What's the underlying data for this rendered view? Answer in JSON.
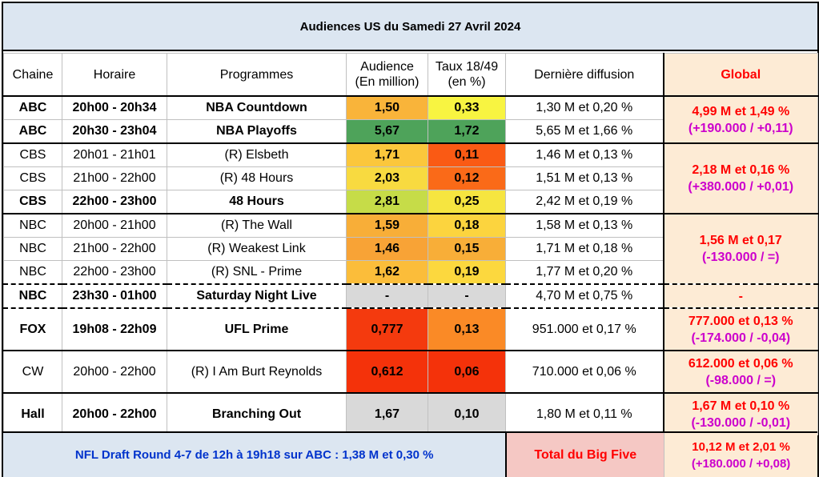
{
  "title": "Audiences US du Samedi 27 Avril 2024",
  "headers": {
    "chaine": "Chaine",
    "horaire": "Horaire",
    "programmes": "Programmes",
    "audience_l1": "Audience",
    "audience_l2": "(En million)",
    "taux_l1": "Taux 18/49",
    "taux_l2": "(en %)",
    "derniere": "Dernière diffusion",
    "global": "Global"
  },
  "rows": [
    {
      "chaine": "ABC",
      "horaire": "20h00 - 20h34",
      "programme": "NBA Countdown",
      "audience": "1,50",
      "taux": "0,33",
      "derniere": "1,30 M et 0,20 %"
    },
    {
      "chaine": "ABC",
      "horaire": "20h30 - 23h04",
      "programme": "NBA Playoffs",
      "audience": "5,67",
      "taux": "1,72",
      "derniere": "5,65 M et 1,66 %"
    },
    {
      "chaine": "CBS",
      "horaire": "20h01 - 21h01",
      "programme": "(R) Elsbeth",
      "audience": "1,71",
      "taux": "0,11",
      "derniere": "1,46 M et 0,13 %"
    },
    {
      "chaine": "CBS",
      "horaire": "21h00 - 22h00",
      "programme": "(R) 48 Hours",
      "audience": "2,03",
      "taux": "0,12",
      "derniere": "1,51 M et 0,13 %"
    },
    {
      "chaine": "CBS",
      "horaire": "22h00 - 23h00",
      "programme": "48 Hours",
      "audience": "2,81",
      "taux": "0,25",
      "derniere": "2,42 M et 0,19 %"
    },
    {
      "chaine": "NBC",
      "horaire": "20h00 - 21h00",
      "programme": "(R) The Wall",
      "audience": "1,59",
      "taux": "0,18",
      "derniere": "1,58 M et 0,13 %"
    },
    {
      "chaine": "NBC",
      "horaire": "21h00 - 22h00",
      "programme": "(R) Weakest Link",
      "audience": "1,46",
      "taux": "0,15",
      "derniere": "1,71 M et 0,18 %"
    },
    {
      "chaine": "NBC",
      "horaire": "22h00 - 23h00",
      "programme": "(R) SNL - Prime",
      "audience": "1,62",
      "taux": "0,19",
      "derniere": "1,77 M et 0,20 %"
    },
    {
      "chaine": "NBC",
      "horaire": "23h30 - 01h00",
      "programme": "Saturday Night Live",
      "audience": "-",
      "taux": "-",
      "derniere": "4,70 M et 0,75 %"
    },
    {
      "chaine": "FOX",
      "horaire": "19h08 - 22h09",
      "programme": "UFL Prime",
      "audience": "0,777",
      "taux": "0,13",
      "derniere": "951.000 et 0,17 %"
    },
    {
      "chaine": "CW",
      "horaire": "20h00 - 22h00",
      "programme": "(R) I Am Burt Reynolds",
      "audience": "0,612",
      "taux": "0,06",
      "derniere": "710.000 et 0,06 %"
    },
    {
      "chaine": "Hall",
      "horaire": "20h00 - 22h00",
      "programme": "Branching Out",
      "audience": "1,67",
      "taux": "0,10",
      "derniere": "1,80 M et 0,11 %"
    }
  ],
  "globals": {
    "abc_main": "4,99 M et 1,49 %",
    "abc_sub": "(+190.000 / +0,11)",
    "cbs_main": "2,18 M et 0,16 %",
    "cbs_sub": "(+380.000 / +0,01)",
    "nbc_main": "1,56 M et 0,17",
    "nbc_sub": "(-130.000 / =)",
    "snl": "-",
    "fox_main": "777.000 et 0,13 %",
    "fox_sub": "(-174.000 / -0,04)",
    "cw_main": "612.000 et 0,06 %",
    "cw_sub": "(-98.000 / =)",
    "hall_main": "1,67 M et 0,10 %",
    "hall_sub": "(-130.000 / -0,01)"
  },
  "footer": {
    "note": "NFL Draft Round 4-7 de 12h à 19h18 sur ABC : 1,38 M et 0,30 %",
    "total_label": "Total du Big Five",
    "total_main": "10,12 M et 2,01 %",
    "total_sub": "(+180.000 / +0,08)"
  },
  "colors": {
    "header_bg": "#dce6f1",
    "global_bg": "#fdebd5",
    "global_text": "#ff0000",
    "global_sub_text": "#cc00cc",
    "note_text": "#0033cc",
    "total_label_bg": "#f5c8c4",
    "heat_green": "#4ea35a",
    "heat_yellow": "#f8f441",
    "heat_orange": "#f88a2a",
    "heat_red": "#f4320a",
    "neutral_grey": "#d9d9d9"
  },
  "cell_colors": {
    "audience": [
      "#f9b43a",
      "#4ea35a",
      "#fbc73c",
      "#f8da40",
      "#c6dc48",
      "#f8ae38",
      "#f8a336",
      "#fbbd3a",
      "#d9d9d9",
      "#f43a0e",
      "#f4320a",
      "#d9d9d9"
    ],
    "taux": [
      "#f8f441",
      "#4ea35a",
      "#fa5a14",
      "#fa6a18",
      "#f6e540",
      "#fcd43e",
      "#f8ae38",
      "#fcd83e",
      "#d9d9d9",
      "#fa8a26",
      "#f4320a",
      "#d9d9d9"
    ]
  }
}
